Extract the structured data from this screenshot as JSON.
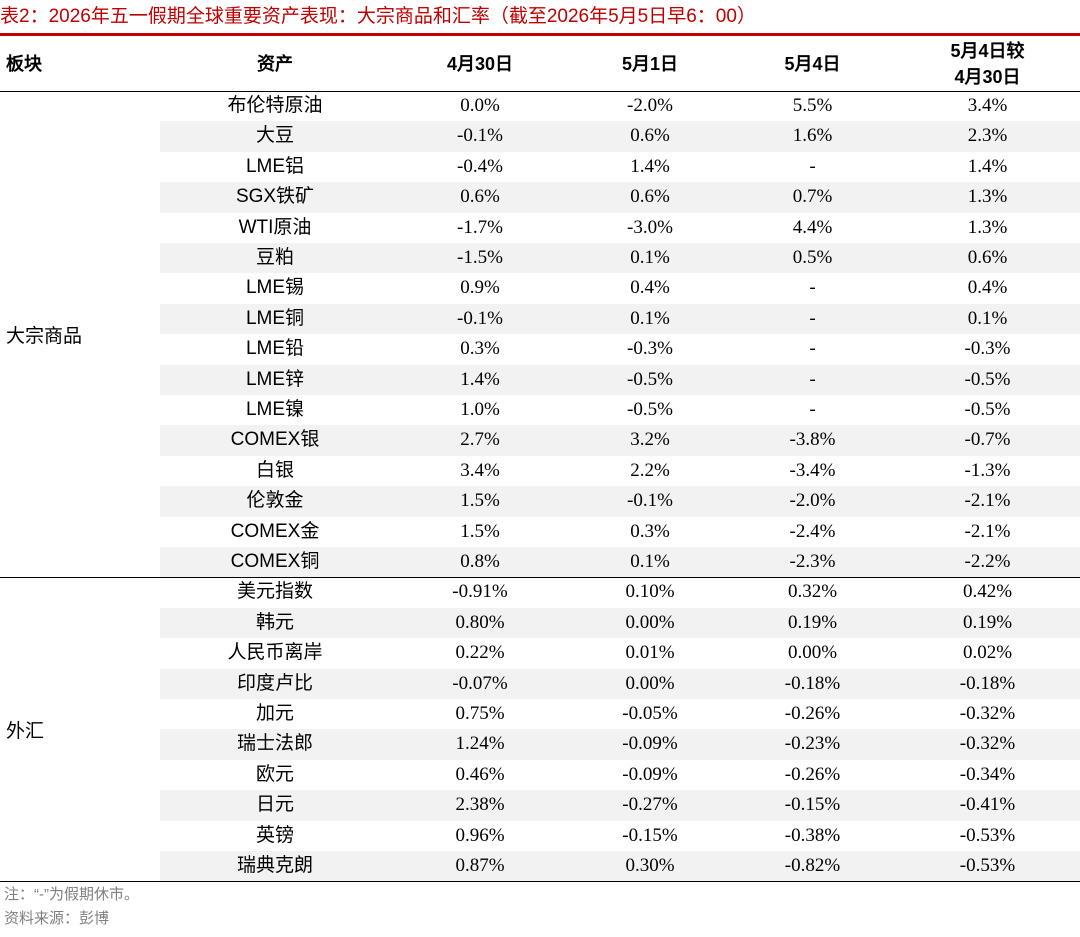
{
  "title": "表2：2026年五一假期全球重要资产表现：大宗商品和汇率（截至2026年5月5日早6：00）",
  "colors": {
    "title_text": "#c00000",
    "accent_bar": "#c00000",
    "band": "#f2f2f2",
    "footnote": "#7f7f7f"
  },
  "header": {
    "sector": "板块",
    "asset": "资产",
    "c1": "4月30日",
    "c2": "5月1日",
    "c3": "5月4日",
    "c4_line1": "5月4日较",
    "c4_line2": "4月30日"
  },
  "groups": [
    {
      "label": "大宗商品",
      "rows": [
        [
          "布伦特原油",
          "0.0%",
          "-2.0%",
          "5.5%",
          "3.4%"
        ],
        [
          "大豆",
          "-0.1%",
          "0.6%",
          "1.6%",
          "2.3%"
        ],
        [
          "LME铝",
          "-0.4%",
          "1.4%",
          "-",
          "1.4%"
        ],
        [
          "SGX铁矿",
          "0.6%",
          "0.6%",
          "0.7%",
          "1.3%"
        ],
        [
          "WTI原油",
          "-1.7%",
          "-3.0%",
          "4.4%",
          "1.3%"
        ],
        [
          "豆粕",
          "-1.5%",
          "0.1%",
          "0.5%",
          "0.6%"
        ],
        [
          "LME锡",
          "0.9%",
          "0.4%",
          "-",
          "0.4%"
        ],
        [
          "LME铜",
          "-0.1%",
          "0.1%",
          "-",
          "0.1%"
        ],
        [
          "LME铅",
          "0.3%",
          "-0.3%",
          "-",
          "-0.3%"
        ],
        [
          "LME锌",
          "1.4%",
          "-0.5%",
          "-",
          "-0.5%"
        ],
        [
          "LME镍",
          "1.0%",
          "-0.5%",
          "-",
          "-0.5%"
        ],
        [
          "COMEX银",
          "2.7%",
          "3.2%",
          "-3.8%",
          "-0.7%"
        ],
        [
          "白银",
          "3.4%",
          "2.2%",
          "-3.4%",
          "-1.3%"
        ],
        [
          "伦敦金",
          "1.5%",
          "-0.1%",
          "-2.0%",
          "-2.1%"
        ],
        [
          "COMEX金",
          "1.5%",
          "0.3%",
          "-2.4%",
          "-2.1%"
        ],
        [
          "COMEX铜",
          "0.8%",
          "0.1%",
          "-2.3%",
          "-2.2%"
        ]
      ]
    },
    {
      "label": "外汇",
      "rows": [
        [
          "美元指数",
          "-0.91%",
          "0.10%",
          "0.32%",
          "0.42%"
        ],
        [
          "韩元",
          "0.80%",
          "0.00%",
          "0.19%",
          "0.19%"
        ],
        [
          "人民币离岸",
          "0.22%",
          "0.01%",
          "0.00%",
          "0.02%"
        ],
        [
          "印度卢比",
          "-0.07%",
          "0.00%",
          "-0.18%",
          "-0.18%"
        ],
        [
          "加元",
          "0.75%",
          "-0.05%",
          "-0.26%",
          "-0.32%"
        ],
        [
          "瑞士法郎",
          "1.24%",
          "-0.09%",
          "-0.23%",
          "-0.32%"
        ],
        [
          "欧元",
          "0.46%",
          "-0.09%",
          "-0.26%",
          "-0.34%"
        ],
        [
          "日元",
          "2.38%",
          "-0.27%",
          "-0.15%",
          "-0.41%"
        ],
        [
          "英镑",
          "0.96%",
          "-0.15%",
          "-0.38%",
          "-0.53%"
        ],
        [
          "瑞典克朗",
          "0.87%",
          "0.30%",
          "-0.82%",
          "-0.53%"
        ]
      ]
    }
  ],
  "notes": {
    "note": "注：“-”为假期休市。",
    "source": "资料来源：彭博"
  }
}
